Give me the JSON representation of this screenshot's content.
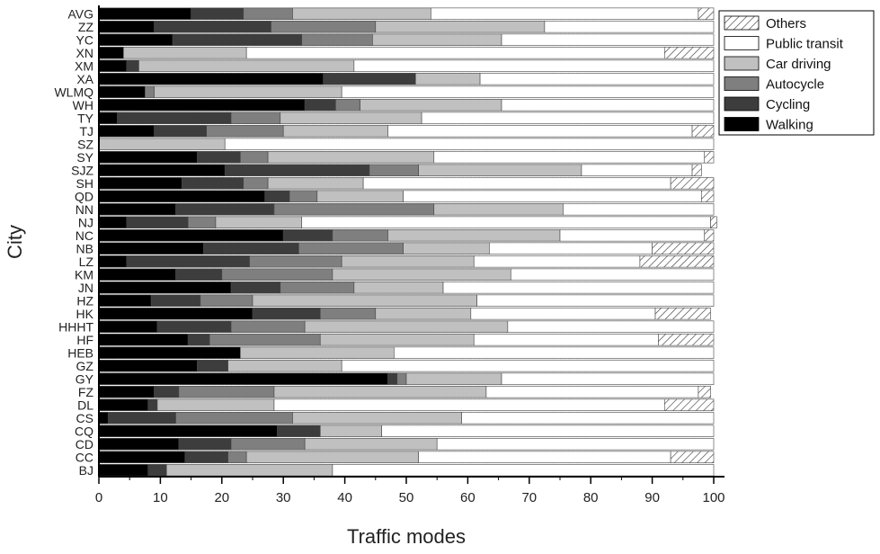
{
  "chart_data": {
    "type": "bar",
    "orientation": "horizontal",
    "stacked": true,
    "xlabel": "Traffic modes",
    "ylabel": "City",
    "xlim": [
      0,
      100
    ],
    "xticks": [
      0,
      10,
      20,
      30,
      40,
      50,
      60,
      70,
      80,
      90,
      100
    ],
    "legend_position": "top-right",
    "categories": [
      "BJ",
      "CC",
      "CD",
      "CQ",
      "CS",
      "DL",
      "FZ",
      "GY",
      "GZ",
      "HEB",
      "HF",
      "HHHT",
      "HK",
      "HZ",
      "JN",
      "KM",
      "LZ",
      "NB",
      "NC",
      "NJ",
      "NN",
      "QD",
      "SH",
      "SJZ",
      "SY",
      "SZ",
      "TJ",
      "TY",
      "WH",
      "WLMQ",
      "XA",
      "XM",
      "XN",
      "YC",
      "ZZ",
      "AVG"
    ],
    "series": [
      {
        "name": "Walking",
        "color": "#000000",
        "pattern": "solid",
        "values": [
          8,
          14,
          13,
          29,
          1.5,
          8,
          9,
          47,
          16,
          23,
          14.5,
          9.5,
          25,
          8.5,
          21.5,
          12.5,
          4.5,
          17,
          30,
          4.5,
          12.5,
          27,
          13.5,
          20.5,
          16,
          0,
          9,
          3,
          33.5,
          7.5,
          36.5,
          4.5,
          4,
          12,
          9,
          15
        ]
      },
      {
        "name": "Cycling",
        "color": "#3d3d3d",
        "pattern": "solid",
        "values": [
          3,
          7,
          8.5,
          7,
          11,
          1.5,
          4,
          1.5,
          5,
          0,
          3.5,
          12,
          11,
          8,
          8,
          7.5,
          20,
          15.5,
          8,
          10,
          16,
          4,
          10,
          23.5,
          7,
          0,
          8.5,
          18.5,
          5,
          0,
          15,
          2,
          0,
          21,
          19,
          8.5
        ]
      },
      {
        "name": "Autocycle",
        "color": "#7f7f7f",
        "pattern": "solid",
        "values": [
          0,
          3,
          12,
          0,
          19,
          0,
          15.5,
          1.5,
          0,
          0,
          18,
          12,
          9,
          8.5,
          12,
          18,
          15,
          17,
          9,
          4.5,
          26,
          4.5,
          4,
          8,
          4.5,
          0,
          12.5,
          8,
          4,
          1.5,
          0,
          0,
          0,
          11.5,
          17,
          8
        ]
      },
      {
        "name": "Car driving",
        "color": "#c0c0c0",
        "pattern": "solid",
        "values": [
          27,
          28,
          21.5,
          10,
          27.5,
          19,
          34.5,
          15.5,
          18.5,
          25,
          25,
          33,
          15.5,
          36.5,
          14.5,
          29,
          21.5,
          14,
          28,
          14,
          21,
          14,
          15.5,
          26.5,
          27,
          20.5,
          17,
          23,
          23,
          30.5,
          10.5,
          35,
          20,
          21,
          27.5,
          22.5
        ]
      },
      {
        "name": "Public transit",
        "color": "#ffffff",
        "pattern": "solid",
        "values": [
          62,
          41,
          45,
          54,
          41,
          63.5,
          34.5,
          34.5,
          60.5,
          52,
          30,
          33.5,
          30,
          38.5,
          44,
          33,
          27,
          26.5,
          23.5,
          66.5,
          24.5,
          48.5,
          50,
          18,
          44,
          79.5,
          49.5,
          47.5,
          34.5,
          60.5,
          38,
          58.5,
          68,
          34.5,
          27.5,
          43.5
        ]
      },
      {
        "name": "Others",
        "color": "#ffffff",
        "pattern": "hatch",
        "values": [
          0,
          7,
          0,
          0,
          0,
          8,
          2,
          0,
          0,
          0,
          9,
          0,
          9,
          0,
          0,
          0,
          12,
          10,
          1.5,
          1,
          0,
          2,
          7,
          1.5,
          1.5,
          0,
          3.5,
          0,
          0,
          0,
          0,
          0,
          8,
          0,
          0,
          2.5
        ]
      }
    ]
  }
}
